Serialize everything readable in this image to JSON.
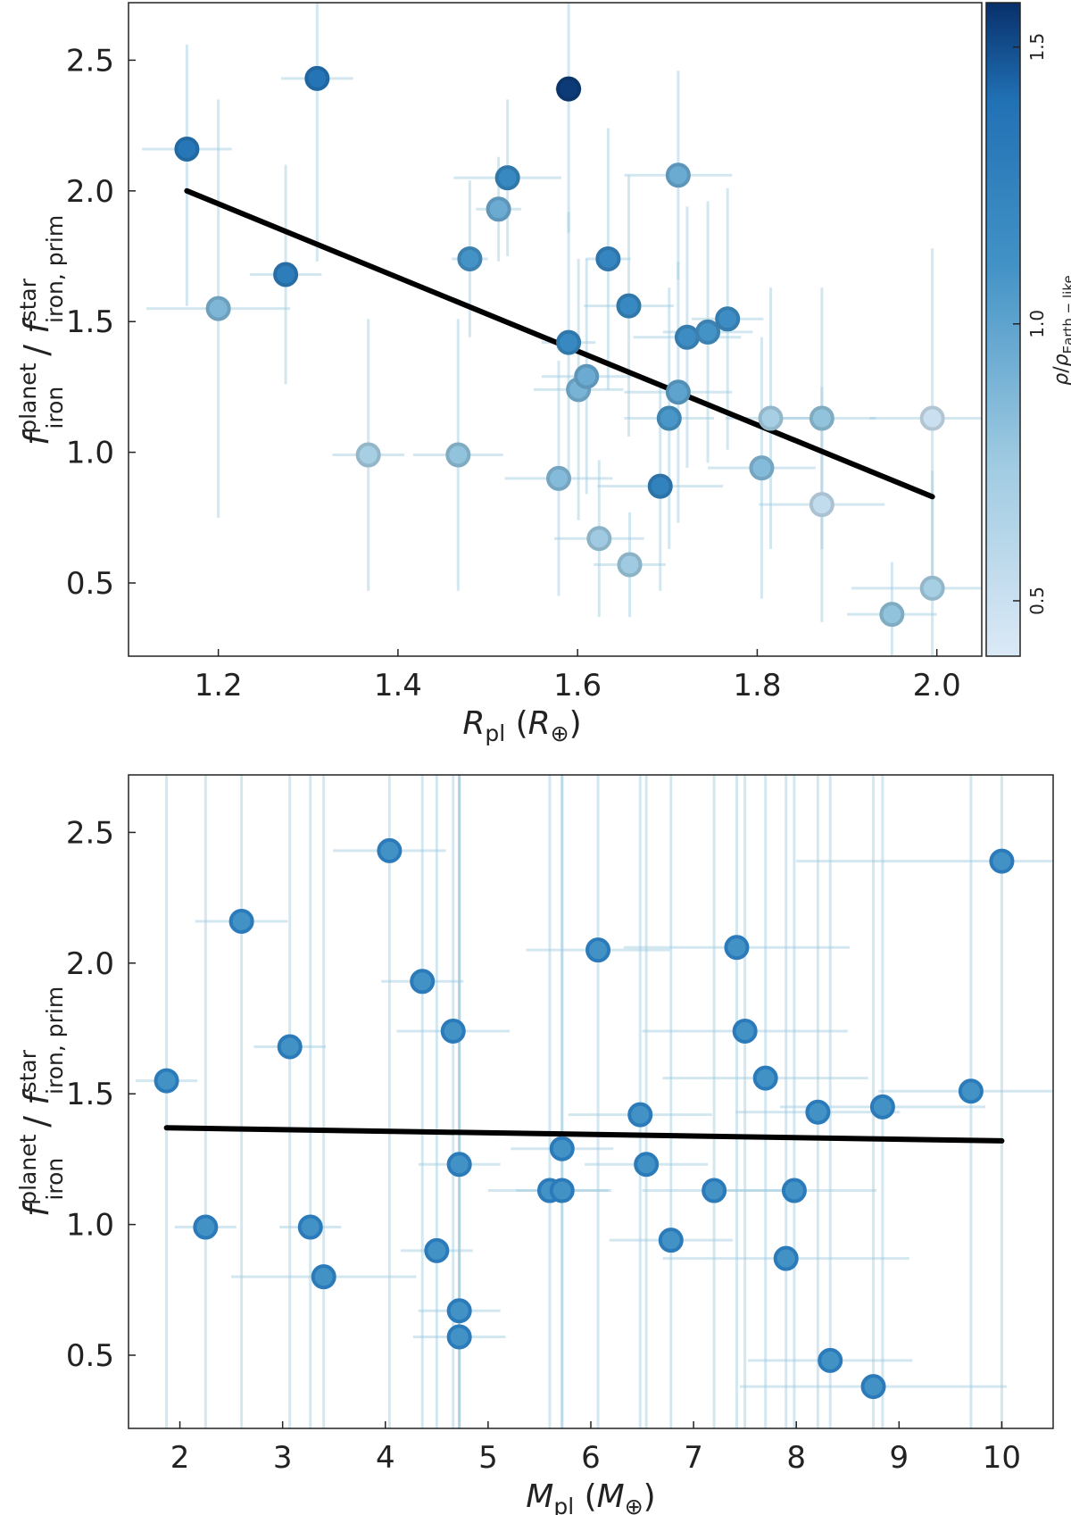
{
  "chart_data": [
    {
      "type": "scatter",
      "xlabel": "R_pl (R_⊕)",
      "xlabel_parts": {
        "main": "R",
        "sub": "pl",
        "unit_open": " (",
        "unit": "R",
        "unit_sub": "⊕",
        "unit_close": ")"
      },
      "ylabel_parts": {
        "f1": "f",
        "sup1": "planet",
        "sub1": "iron",
        "slash": " / ",
        "f2": "f",
        "sup2": "star",
        "sub2": "iron, prim"
      },
      "xlim": [
        1.1,
        2.05
      ],
      "ylim": [
        0.22,
        2.72
      ],
      "xticks": [
        1.2,
        1.4,
        1.6,
        1.8,
        2.0
      ],
      "xtick_labels": [
        "1.2",
        "1.4",
        "1.6",
        "1.8",
        "2.0"
      ],
      "yticks": [
        0.5,
        1.0,
        1.5,
        2.0,
        2.5
      ],
      "ytick_labels": [
        "0.5",
        "1.0",
        "1.5",
        "2.0",
        "2.5"
      ],
      "grid": false,
      "fit_line": {
        "x": [
          1.165,
          1.995
        ],
        "y": [
          2.0,
          0.83
        ]
      },
      "colorbar": {
        "label": "ρ/ρ_Earth−like",
        "label_parts": {
          "rho1": "ρ",
          "slash": "/",
          "rho2": "ρ",
          "sub": "Earth − like"
        },
        "range": [
          0.4,
          1.58
        ],
        "ticks": [
          0.5,
          1.0,
          1.5
        ],
        "tick_labels": [
          "0.5",
          "1.0",
          "1.5"
        ],
        "cmap": [
          "#dbe9f6",
          "#9ecae1",
          "#4292c6",
          "#2171b5",
          "#08306b"
        ]
      },
      "points": [
        {
          "x": 1.165,
          "y": 2.16,
          "c": 1.35,
          "xerr": 0.05,
          "yerr": [
            0.6,
            0.4
          ]
        },
        {
          "x": 1.31,
          "y": 2.43,
          "c": 1.38,
          "xerr": 0.04,
          "yerr": [
            0.7,
            0.3
          ]
        },
        {
          "x": 1.59,
          "y": 2.39,
          "c": 1.55,
          "xerr": 0.015,
          "yerr": [
            0.55,
            0.35
          ]
        },
        {
          "x": 1.2,
          "y": 1.55,
          "c": 0.88,
          "xerr": 0.08,
          "yerr": [
            0.8,
            0.8
          ]
        },
        {
          "x": 1.275,
          "y": 1.68,
          "c": 1.3,
          "xerr": 0.04,
          "yerr": [
            0.42,
            0.42
          ]
        },
        {
          "x": 1.367,
          "y": 0.99,
          "c": 0.7,
          "xerr": 0.04,
          "yerr": [
            0.52,
            0.52
          ]
        },
        {
          "x": 1.467,
          "y": 0.99,
          "c": 0.8,
          "xerr": 0.05,
          "yerr": [
            0.52,
            0.52
          ]
        },
        {
          "x": 1.48,
          "y": 1.74,
          "c": 1.1,
          "xerr": 0.02,
          "yerr": [
            0.3,
            0.3
          ]
        },
        {
          "x": 1.512,
          "y": 1.93,
          "c": 0.95,
          "xerr": 0.025,
          "yerr": [
            0.2,
            0.2
          ]
        },
        {
          "x": 1.522,
          "y": 2.05,
          "c": 1.2,
          "xerr": 0.06,
          "yerr": [
            0.3,
            0.3
          ]
        },
        {
          "x": 1.579,
          "y": 0.9,
          "c": 0.85,
          "xerr": 0.06,
          "yerr": [
            0.45,
            0.45
          ]
        },
        {
          "x": 1.59,
          "y": 1.42,
          "c": 1.2,
          "xerr": 0.03,
          "yerr": [
            0.5,
            0.5
          ]
        },
        {
          "x": 1.601,
          "y": 1.24,
          "c": 0.9,
          "xerr": 0.05,
          "yerr": [
            0.5,
            0.5
          ]
        },
        {
          "x": 1.61,
          "y": 1.29,
          "c": 0.95,
          "xerr": 0.05,
          "yerr": [
            0.45,
            0.45
          ]
        },
        {
          "x": 1.624,
          "y": 0.67,
          "c": 0.75,
          "xerr": 0.05,
          "yerr": [
            0.3,
            0.3
          ]
        },
        {
          "x": 1.634,
          "y": 1.74,
          "c": 1.22,
          "xerr": 0.025,
          "yerr": [
            0.5,
            0.5
          ]
        },
        {
          "x": 1.658,
          "y": 0.57,
          "c": 0.75,
          "xerr": 0.04,
          "yerr": [
            0.2,
            0.2
          ]
        },
        {
          "x": 1.657,
          "y": 1.56,
          "c": 1.2,
          "xerr": 0.05,
          "yerr": [
            0.5,
            0.5
          ]
        },
        {
          "x": 1.692,
          "y": 0.87,
          "c": 1.25,
          "xerr": 0.07,
          "yerr": [
            0.4,
            0.4
          ]
        },
        {
          "x": 1.702,
          "y": 1.13,
          "c": 1.08,
          "xerr": 0.05,
          "yerr": [
            0.5,
            0.5
          ]
        },
        {
          "x": 1.712,
          "y": 1.23,
          "c": 1.0,
          "xerr": 0.06,
          "yerr": [
            0.5,
            0.5
          ]
        },
        {
          "x": 1.712,
          "y": 2.06,
          "c": 0.95,
          "xerr": 0.06,
          "yerr": [
            0.4,
            0.4
          ]
        },
        {
          "x": 1.722,
          "y": 1.44,
          "c": 1.15,
          "xerr": 0.06,
          "yerr": [
            0.5,
            0.5
          ]
        },
        {
          "x": 1.745,
          "y": 1.46,
          "c": 1.1,
          "xerr": 0.05,
          "yerr": [
            0.5,
            0.5
          ]
        },
        {
          "x": 1.767,
          "y": 1.51,
          "c": 1.15,
          "xerr": 0.04,
          "yerr": [
            0.5,
            0.5
          ]
        },
        {
          "x": 1.805,
          "y": 0.94,
          "c": 0.85,
          "xerr": 0.06,
          "yerr": [
            0.5,
            0.5
          ]
        },
        {
          "x": 1.815,
          "y": 1.13,
          "c": 0.7,
          "xerr": 0.05,
          "yerr": [
            0.5,
            0.5
          ]
        },
        {
          "x": 1.872,
          "y": 1.13,
          "c": 0.8,
          "xerr": 0.06,
          "yerr": [
            0.5,
            0.5
          ]
        },
        {
          "x": 1.872,
          "y": 0.8,
          "c": 0.55,
          "xerr": 0.07,
          "yerr": [
            0.45,
            0.45
          ]
        },
        {
          "x": 1.95,
          "y": 0.38,
          "c": 0.8,
          "xerr": 0.05,
          "yerr": [
            0.2,
            0.2
          ]
        },
        {
          "x": 1.995,
          "y": 1.13,
          "c": 0.5,
          "xerr": 0.07,
          "yerr": [
            0.65,
            0.65
          ]
        },
        {
          "x": 1.995,
          "y": 0.48,
          "c": 0.7,
          "xerr": 0.09,
          "yerr": [
            0.45,
            0.45
          ]
        }
      ]
    },
    {
      "type": "scatter",
      "xlabel": "M_pl (M_⊕)",
      "xlabel_parts": {
        "main": "M",
        "sub": "pl",
        "unit_open": " (",
        "unit": "M",
        "unit_sub": "⊕",
        "unit_close": ")"
      },
      "ylabel_parts": {
        "f1": "f",
        "sup1": "planet",
        "sub1": "iron",
        "slash": " / ",
        "f2": "f",
        "sup2": "star",
        "sub2": "iron, prim"
      },
      "xlim": [
        1.5,
        10.5
      ],
      "ylim": [
        0.22,
        2.72
      ],
      "xticks": [
        2,
        3,
        4,
        5,
        6,
        7,
        8,
        9,
        10
      ],
      "xtick_labels": [
        "2",
        "3",
        "4",
        "5",
        "6",
        "7",
        "8",
        "9",
        "10"
      ],
      "yticks": [
        0.5,
        1.0,
        1.5,
        2.0,
        2.5
      ],
      "ytick_labels": [
        "0.5",
        "1.0",
        "1.5",
        "2.0",
        "2.5"
      ],
      "grid": false,
      "marker_color": "#4292c6",
      "marker_edge": "#2b7bba",
      "fit_line": {
        "x": [
          1.87,
          10.0
        ],
        "y": [
          1.37,
          1.32
        ]
      },
      "points": [
        {
          "x": 1.87,
          "y": 1.55,
          "xerr": 0.3
        },
        {
          "x": 2.25,
          "y": 0.99,
          "xerr": 0.3
        },
        {
          "x": 2.6,
          "y": 2.16,
          "xerr": 0.45
        },
        {
          "x": 3.07,
          "y": 1.68,
          "xerr": 0.35
        },
        {
          "x": 3.27,
          "y": 0.99,
          "xerr": 0.3
        },
        {
          "x": 3.4,
          "y": 0.8,
          "xerr": 0.9
        },
        {
          "x": 4.04,
          "y": 2.43,
          "xerr": 0.55
        },
        {
          "x": 4.36,
          "y": 1.93,
          "xerr": 0.4
        },
        {
          "x": 4.5,
          "y": 0.9,
          "xerr": 0.35
        },
        {
          "x": 4.66,
          "y": 1.74,
          "xerr": 0.55
        },
        {
          "x": 4.72,
          "y": 1.23,
          "xerr": 0.4
        },
        {
          "x": 4.72,
          "y": 0.67,
          "xerr": 0.4
        },
        {
          "x": 4.72,
          "y": 0.57,
          "xerr": 0.45
        },
        {
          "x": 5.6,
          "y": 1.13,
          "xerr": 0.6
        },
        {
          "x": 5.72,
          "y": 1.13,
          "xerr": 0.45
        },
        {
          "x": 5.72,
          "y": 1.29,
          "xerr": 0.5
        },
        {
          "x": 6.07,
          "y": 2.05,
          "xerr": 0.7
        },
        {
          "x": 6.48,
          "y": 1.42,
          "xerr": 0.7
        },
        {
          "x": 6.54,
          "y": 1.23,
          "xerr": 0.6
        },
        {
          "x": 6.78,
          "y": 0.94,
          "xerr": 0.6
        },
        {
          "x": 7.2,
          "y": 1.13,
          "xerr": 0.7
        },
        {
          "x": 7.42,
          "y": 2.06,
          "xerr": 1.1
        },
        {
          "x": 7.5,
          "y": 1.74,
          "xerr": 1.0
        },
        {
          "x": 7.7,
          "y": 1.56,
          "xerr": 1.0
        },
        {
          "x": 7.9,
          "y": 0.87,
          "xerr": 1.2
        },
        {
          "x": 7.98,
          "y": 1.13,
          "xerr": 0.8
        },
        {
          "x": 8.21,
          "y": 1.43,
          "xerr": 0.8
        },
        {
          "x": 8.33,
          "y": 0.48,
          "xerr": 0.8
        },
        {
          "x": 8.75,
          "y": 0.38,
          "xerr": 1.3
        },
        {
          "x": 8.84,
          "y": 1.45,
          "xerr": 1.0
        },
        {
          "x": 9.7,
          "y": 1.51,
          "xerr": 0.9
        },
        {
          "x": 10.0,
          "y": 2.39,
          "xerr": 2.0
        }
      ]
    }
  ]
}
